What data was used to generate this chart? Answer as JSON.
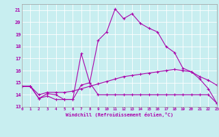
{
  "xlabel": "Windchill (Refroidissement éolien,°C)",
  "bg_color": "#c8eef0",
  "line_color": "#aa00aa",
  "grid_color": "#ffffff",
  "xmin": 0,
  "xmax": 23,
  "ymin": 13,
  "ymax": 21.5,
  "series1_y": [
    14.7,
    14.7,
    13.7,
    14.1,
    14.0,
    13.6,
    13.6,
    14.8,
    15.0,
    14.0,
    14.0,
    14.0,
    14.0,
    14.0,
    14.0,
    14.0,
    14.0,
    14.0,
    14.0,
    14.0,
    14.0,
    14.0,
    14.0,
    13.3
  ],
  "series2_y": [
    14.7,
    14.7,
    14.0,
    14.2,
    14.2,
    14.2,
    14.3,
    14.5,
    14.7,
    14.9,
    15.1,
    15.3,
    15.5,
    15.6,
    15.7,
    15.8,
    15.9,
    16.0,
    16.1,
    16.0,
    15.9,
    15.5,
    15.2,
    14.8
  ],
  "series3_y": [
    14.7,
    14.7,
    13.7,
    13.9,
    13.6,
    13.6,
    13.6,
    17.4,
    15.0,
    18.5,
    19.2,
    21.1,
    20.3,
    20.7,
    19.9,
    19.5,
    19.2,
    18.0,
    17.5,
    16.2,
    15.9,
    15.3,
    14.5,
    13.3
  ],
  "yticks": [
    13,
    14,
    15,
    16,
    17,
    18,
    19,
    20,
    21
  ],
  "xticks": [
    0,
    1,
    2,
    3,
    4,
    5,
    6,
    7,
    8,
    9,
    10,
    11,
    12,
    13,
    14,
    15,
    16,
    17,
    18,
    19,
    20,
    21,
    22,
    23
  ]
}
